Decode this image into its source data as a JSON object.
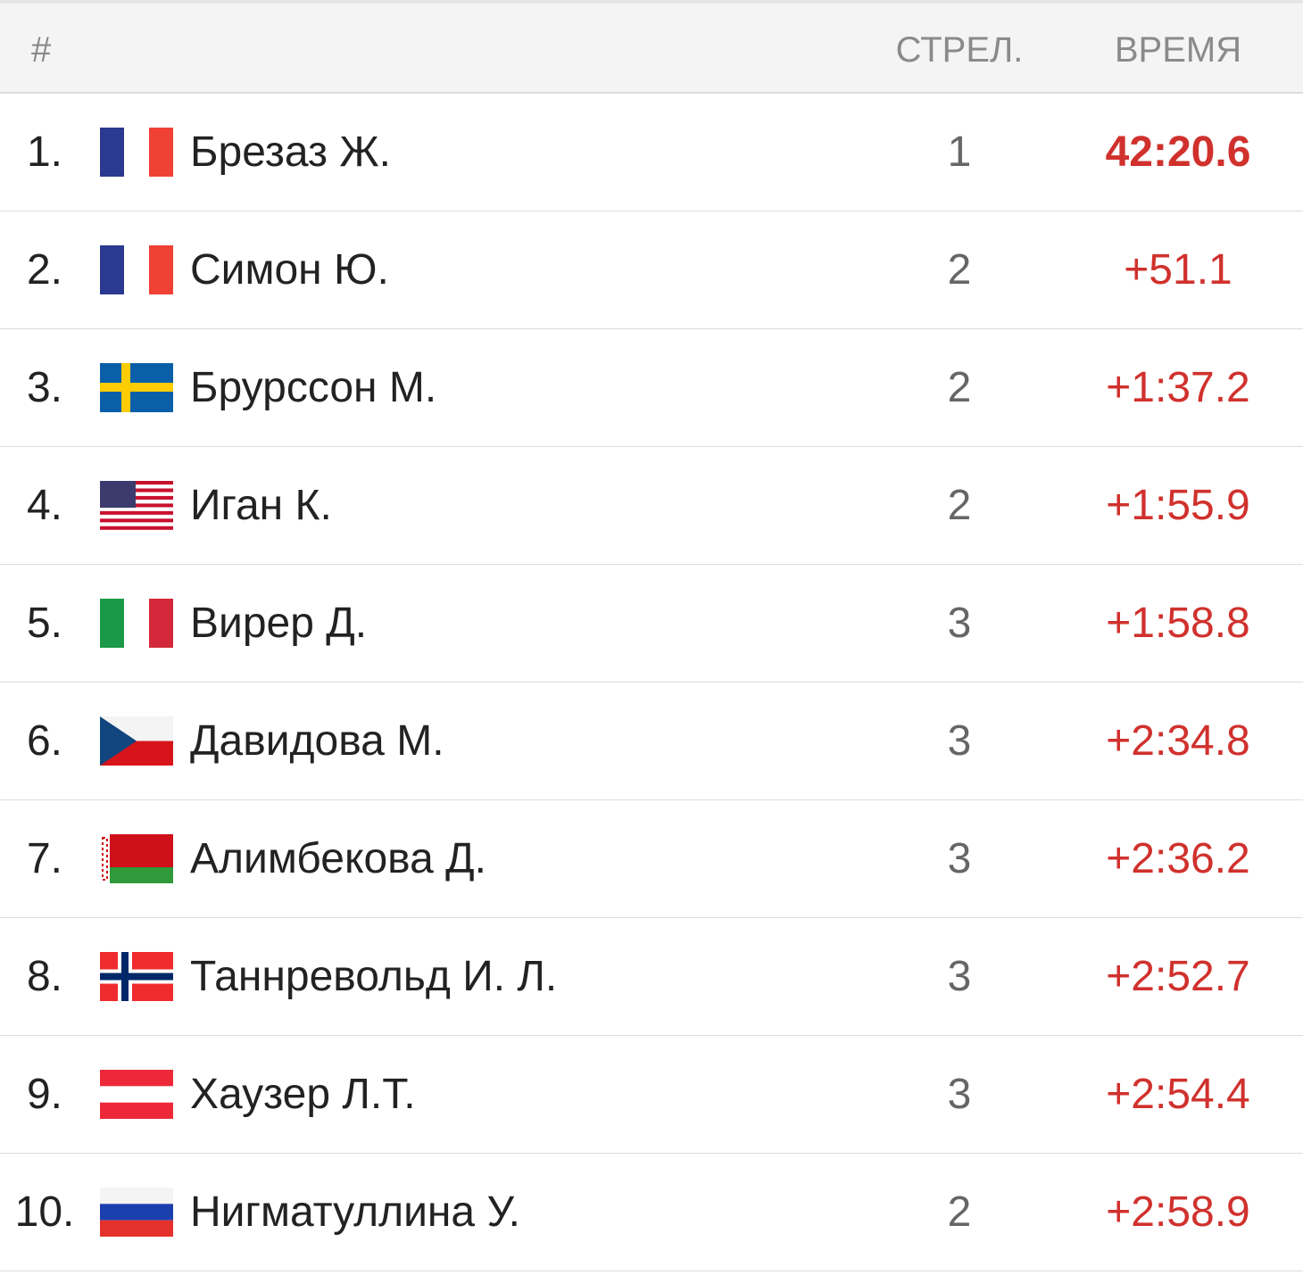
{
  "table": {
    "header": [
      "#",
      "СТРЕЛ.",
      "ВРЕМЯ"
    ],
    "rows": [
      [
        "1.",
        "Брезаз Ж.",
        "1",
        "42:20.6"
      ],
      [
        "2.",
        "Симон Ю.",
        "2",
        "+51.1"
      ],
      [
        "3.",
        "Брурссон М.",
        "2",
        "+1:37.2"
      ],
      [
        "4.",
        "Иган К.",
        "2",
        "+1:55.9"
      ],
      [
        "5.",
        "Вирер Д.",
        "3",
        "+1:58.8"
      ],
      [
        "6.",
        "Давидова М.",
        "3",
        "+2:34.8"
      ],
      [
        "7.",
        "Алимбекова Д.",
        "3",
        "+2:36.2"
      ],
      [
        "8.",
        "Таннревольд И. Л.",
        "3",
        "+2:52.7"
      ],
      [
        "9.",
        "Хаузер Л.Т.",
        "3",
        "+2:54.4"
      ],
      [
        "10.",
        "Нигматуллина У.",
        "2",
        "+2:58.9"
      ]
    ]
  }
}
